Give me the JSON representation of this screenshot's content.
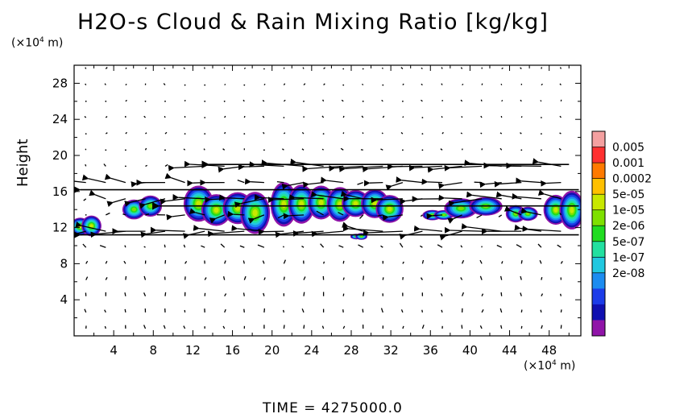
{
  "title": "H2O-s Cloud & Rain Mixing Ratio [kg/kg]",
  "y_unit": "(×10",
  "y_unit_exp": "4",
  "y_unit_tail": " m)",
  "x_unit": "(×10",
  "x_unit_exp": "4",
  "x_unit_tail": " m)",
  "ylabel": "Height",
  "time_label": "TIME  =  4275000.0",
  "chart_data": {
    "type": "heatmap",
    "title": "H2O-s Cloud & Rain Mixing Ratio [kg/kg]",
    "xlabel": "",
    "ylabel": "Height",
    "x_unit": "×10^4 m",
    "y_unit": "×10^4 m",
    "xlim": [
      0,
      51.2
    ],
    "ylim": [
      0,
      30
    ],
    "x_ticks": [
      "4",
      "8",
      "12",
      "16",
      "20",
      "24",
      "28",
      "32",
      "36",
      "40",
      "44",
      "48"
    ],
    "y_ticks": [
      "4",
      "8",
      "12",
      "16",
      "20",
      "24",
      "28"
    ],
    "colorbar": {
      "labels": [
        "0.005",
        "0.001",
        "0.0002",
        "5e-05",
        "1e-05",
        "2e-06",
        "5e-07",
        "1e-07",
        "2e-08"
      ],
      "colors": [
        "#f4a0a0",
        "#ff3030",
        "#ff7a00",
        "#ffc000",
        "#c8e800",
        "#7ee000",
        "#20dc20",
        "#22e0a0",
        "#20c8e0",
        "#1c8cf0",
        "#1c3ce8",
        "#1010b0",
        "#9014a8"
      ]
    },
    "cloud_regions": [
      {
        "x": [
          0,
          2.5
        ],
        "y": [
          10.8,
          13.5
        ],
        "level": "5e-05"
      },
      {
        "x": [
          5.5,
          8.5
        ],
        "y": [
          13,
          15.5
        ],
        "level": "1e-05"
      },
      {
        "x": [
          11.5,
          19.5
        ],
        "y": [
          11.8,
          16.5
        ],
        "level": "5e-05"
      },
      {
        "x": [
          20.5,
          27.5
        ],
        "y": [
          12,
          17
        ],
        "level": "5e-05"
      },
      {
        "x": [
          27.5,
          33
        ],
        "y": [
          12.5,
          16.5
        ],
        "level": "5e-05"
      },
      {
        "x": [
          28,
          29.3
        ],
        "y": [
          10.6,
          11.4
        ],
        "level": "1e-05"
      },
      {
        "x": [
          35.5,
          38
        ],
        "y": [
          12.5,
          14
        ],
        "level": "1e-05"
      },
      {
        "x": [
          38,
          42.5
        ],
        "y": [
          13,
          15.5
        ],
        "level": "1e-05"
      },
      {
        "x": [
          44,
          46.5
        ],
        "y": [
          12.5,
          14.5
        ],
        "level": "1e-05"
      },
      {
        "x": [
          48,
          51.2
        ],
        "y": [
          12,
          16.5
        ],
        "level": "5e-05"
      }
    ],
    "wind_field": {
      "jet_levels": [
        {
          "y": 19.0,
          "x": [
            13,
            50
          ],
          "direction": "westward",
          "strength": "strong"
        },
        {
          "y": 16.2,
          "x": [
            0,
            51
          ],
          "direction": "westward",
          "strength": "strong"
        },
        {
          "y": 14.4,
          "x": [
            8,
            51
          ],
          "direction": "westward",
          "strength": "strong"
        },
        {
          "y": 11.2,
          "x": [
            0,
            51
          ],
          "direction": "westward",
          "strength": "strong"
        }
      ],
      "background": "weak"
    }
  }
}
